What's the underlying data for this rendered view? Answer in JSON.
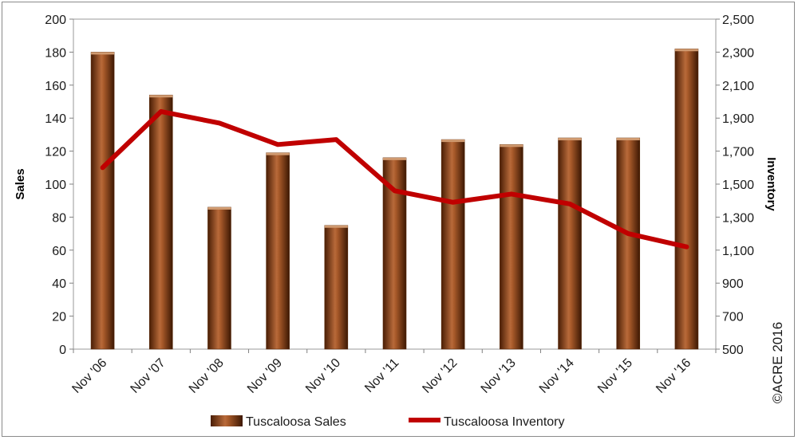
{
  "chart_data": {
    "type": "bar",
    "categories": [
      "Nov '06",
      "Nov '07",
      "Nov '08",
      "Nov '09",
      "Nov '10",
      "Nov '11",
      "Nov '12",
      "Nov '13",
      "Nov '14",
      "Nov '15",
      "Nov '16"
    ],
    "series": [
      {
        "name": "Tuscaloosa Sales",
        "type": "bar",
        "axis": "left",
        "values": [
          180,
          154,
          86,
          119,
          75,
          116,
          127,
          124,
          128,
          128,
          182
        ]
      },
      {
        "name": "Tuscaloosa Inventory",
        "type": "line",
        "axis": "right",
        "values": [
          1600,
          1940,
          1870,
          1740,
          1770,
          1460,
          1390,
          1440,
          1380,
          1200,
          1120
        ]
      }
    ],
    "ylabel": "Sales",
    "y2label": "Inventory",
    "ylim": [
      0,
      200
    ],
    "y2lim": [
      500,
      2500
    ],
    "yticks": [
      "0",
      "20",
      "40",
      "60",
      "80",
      "100",
      "120",
      "140",
      "160",
      "180",
      "200"
    ],
    "y2ticks": [
      "500",
      "700",
      "900",
      "1,100",
      "1,300",
      "1,500",
      "1,700",
      "1,900",
      "2,100",
      "2,300",
      "2,500"
    ],
    "grid": false,
    "legend": "bottom",
    "colors": {
      "bar": "#7a3a12",
      "line": "#c00000"
    },
    "annotation": "©ACRE 2016"
  }
}
